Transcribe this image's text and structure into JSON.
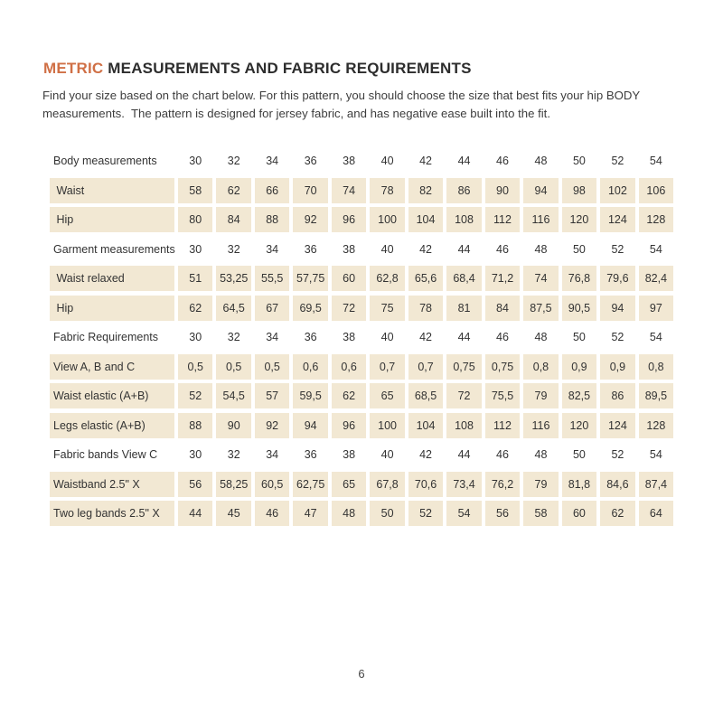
{
  "header": {
    "title_accent": "METRIC",
    "title_rest": " MEASUREMENTS AND FABRIC REQUIREMENTS",
    "intro_line1": "Find your size based on the chart below. For this pattern, you should choose the size that best fits your hip BODY",
    "intro_line2": "measurements.  The pattern is designed for jersey fabric, and has negative ease built into the fit."
  },
  "colors": {
    "accent": "#d07046",
    "cell_bg": "#f2e8d3",
    "text": "#3a3a3a"
  },
  "table": {
    "sizes": [
      "30",
      "32",
      "34",
      "36",
      "38",
      "40",
      "42",
      "44",
      "46",
      "48",
      "50",
      "52",
      "54"
    ],
    "rows": [
      {
        "label": "Body measurements",
        "type": "header",
        "values": [
          "30",
          "32",
          "34",
          "36",
          "38",
          "40",
          "42",
          "44",
          "46",
          "48",
          "50",
          "52",
          "54"
        ]
      },
      {
        "label": " Waist",
        "type": "data",
        "values": [
          "58",
          "62",
          "66",
          "70",
          "74",
          "78",
          "82",
          "86",
          "90",
          "94",
          "98",
          "102",
          "106"
        ]
      },
      {
        "label": " Hip",
        "type": "data",
        "values": [
          "80",
          "84",
          "88",
          "92",
          "96",
          "100",
          "104",
          "108",
          "112",
          "116",
          "120",
          "124",
          "128"
        ]
      },
      {
        "label": "Garment measurements",
        "type": "header",
        "values": [
          "30",
          "32",
          "34",
          "36",
          "38",
          "40",
          "42",
          "44",
          "46",
          "48",
          "50",
          "52",
          "54"
        ]
      },
      {
        "label": " Waist relaxed",
        "type": "data",
        "values": [
          "51",
          "53,25",
          "55,5",
          "57,75",
          "60",
          "62,8",
          "65,6",
          "68,4",
          "71,2",
          "74",
          "76,8",
          "79,6",
          "82,4"
        ]
      },
      {
        "label": " Hip",
        "type": "data",
        "values": [
          "62",
          "64,5",
          "67",
          "69,5",
          "72",
          "75",
          "78",
          "81",
          "84",
          "87,5",
          "90,5",
          "94",
          "97"
        ]
      },
      {
        "label": "Fabric Requirements",
        "type": "header",
        "values": [
          "30",
          "32",
          "34",
          "36",
          "38",
          "40",
          "42",
          "44",
          "46",
          "48",
          "50",
          "52",
          "54"
        ]
      },
      {
        "label": "View A, B and C",
        "type": "data",
        "values": [
          "0,5",
          "0,5",
          "0,5",
          "0,6",
          "0,6",
          "0,7",
          "0,7",
          "0,75",
          "0,75",
          "0,8",
          "0,9",
          "0,9",
          "0,8"
        ]
      },
      {
        "label": "Waist elastic (A+B)",
        "type": "data",
        "values": [
          "52",
          "54,5",
          "57",
          "59,5",
          "62",
          "65",
          "68,5",
          "72",
          "75,5",
          "79",
          "82,5",
          "86",
          "89,5"
        ]
      },
      {
        "label": "Legs elastic (A+B)",
        "type": "data",
        "values": [
          "88",
          "90",
          "92",
          "94",
          "96",
          "100",
          "104",
          "108",
          "112",
          "116",
          "120",
          "124",
          "128"
        ]
      },
      {
        "label": "Fabric bands View C",
        "type": "header",
        "values": [
          "30",
          "32",
          "34",
          "36",
          "38",
          "40",
          "42",
          "44",
          "46",
          "48",
          "50",
          "52",
          "54"
        ]
      },
      {
        "label": "Waistband 2.5\" X",
        "type": "data",
        "values": [
          "56",
          "58,25",
          "60,5",
          "62,75",
          "65",
          "67,8",
          "70,6",
          "73,4",
          "76,2",
          "79",
          "81,8",
          "84,6",
          "87,4"
        ]
      },
      {
        "label": "Two leg bands 2.5\" X",
        "type": "data",
        "values": [
          "44",
          "45",
          "46",
          "47",
          "48",
          "50",
          "52",
          "54",
          "56",
          "58",
          "60",
          "62",
          "64"
        ]
      }
    ]
  },
  "footer": {
    "page_number": "6"
  }
}
